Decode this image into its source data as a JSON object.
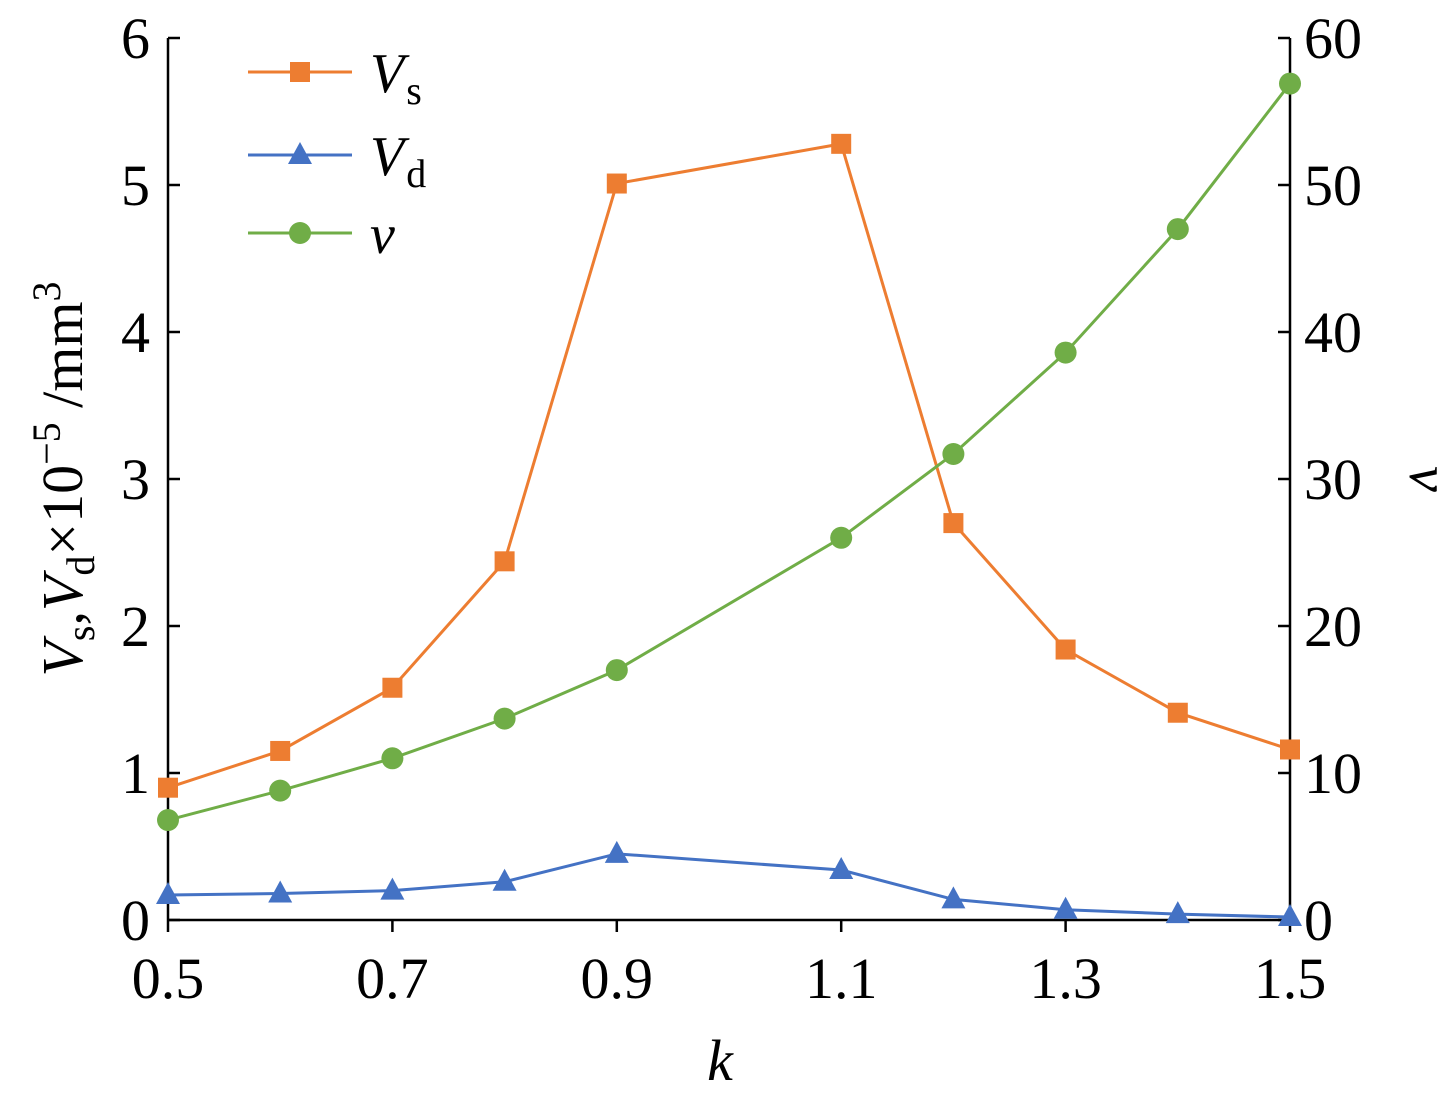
{
  "chart_data": {
    "type": "line",
    "x": [
      0.5,
      0.6,
      0.7,
      0.8,
      0.9,
      1.1,
      1.2,
      1.3,
      1.4,
      1.5
    ],
    "xlabel": "k",
    "xlim": [
      0.5,
      1.5
    ],
    "xticks": [
      "0.5",
      "0.7",
      "0.9",
      "1.1",
      "1.3",
      "1.5"
    ],
    "ylabel_left": {
      "v1": "V",
      "s1": "s",
      "sep": ",",
      "v2": "V",
      "s2": "d",
      "rest": "×10",
      "exp": "−5",
      "unit": " /mm",
      "unit_exp": "3"
    },
    "ylim_left": [
      0,
      6
    ],
    "yticks_left": [
      "0",
      "1",
      "2",
      "3",
      "4",
      "5",
      "6"
    ],
    "ylabel_right": "ν",
    "ylim_right": [
      0,
      60
    ],
    "yticks_right": [
      "0",
      "10",
      "20",
      "30",
      "40",
      "50",
      "60"
    ],
    "grid": false,
    "legend_position": "top-left",
    "series": [
      {
        "name": "V",
        "sub": "s",
        "axis": "left",
        "color": "#ED7D31",
        "marker": "square",
        "values": [
          0.9,
          1.15,
          1.58,
          2.44,
          5.01,
          5.28,
          2.7,
          1.84,
          1.41,
          1.16
        ]
      },
      {
        "name": "V",
        "sub": "d",
        "axis": "left",
        "color": "#4472C4",
        "marker": "triangle",
        "values": [
          0.17,
          0.18,
          0.2,
          0.26,
          0.45,
          0.34,
          0.14,
          0.07,
          0.04,
          0.02
        ]
      },
      {
        "name": "ν",
        "sub": "",
        "axis": "right",
        "color": "#70AD47",
        "marker": "circle",
        "values": [
          6.8,
          8.8,
          11.0,
          13.7,
          17.0,
          26.0,
          31.7,
          38.6,
          47.0,
          56.9
        ]
      }
    ]
  }
}
